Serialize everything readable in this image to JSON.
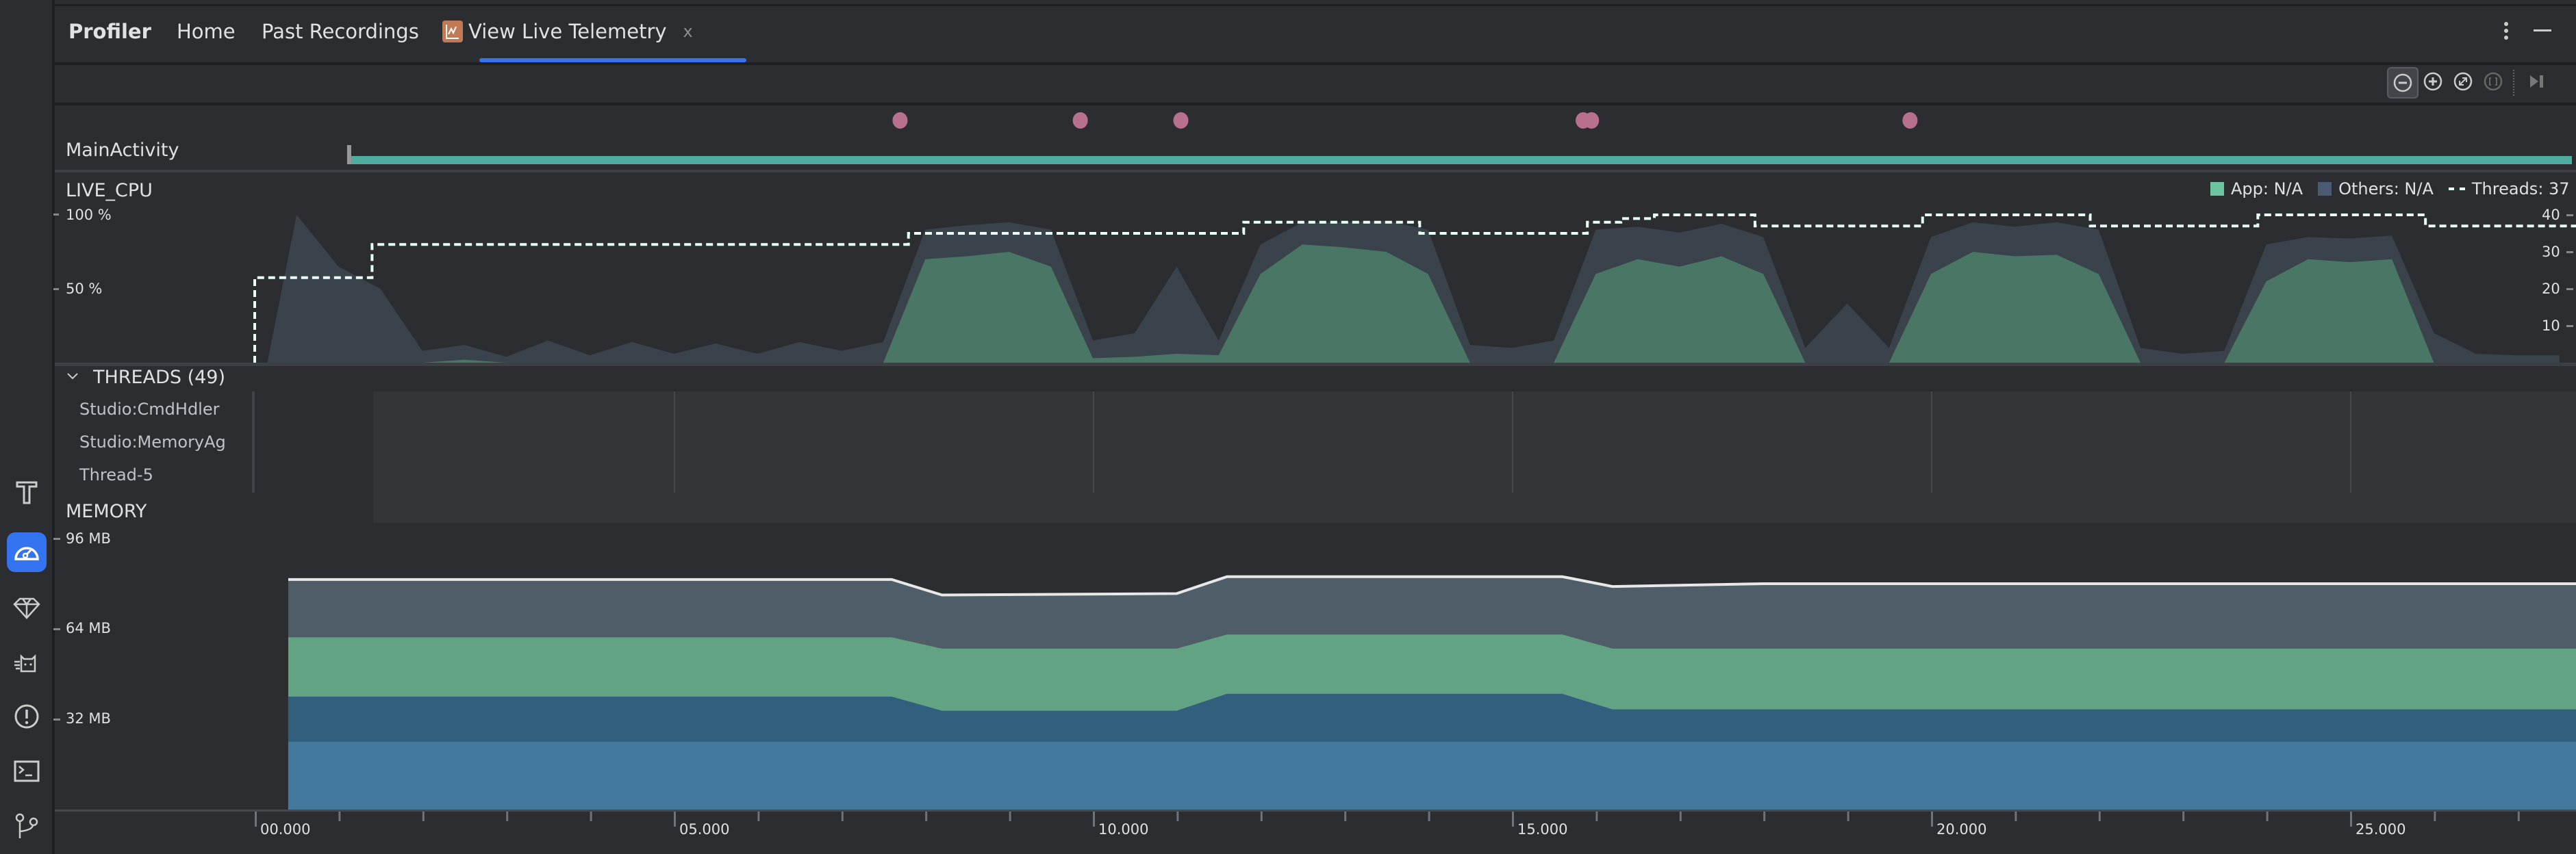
{
  "tabs": {
    "title": "Profiler",
    "items": [
      {
        "label": "Home"
      },
      {
        "label": "Past Recordings"
      },
      {
        "label": "View Live Telemetry",
        "active": true,
        "icon": "chart-icon",
        "closable": true
      }
    ],
    "close_glyph": "x",
    "accent": "#3574f0"
  },
  "window_controls": {
    "more": "more-vertical-icon",
    "minimize": "minimize-icon"
  },
  "toolbar": {
    "buttons": [
      "zoom-out-icon",
      "zoom-in-icon",
      "reset-zoom-icon",
      "zoom-to-selection-icon",
      "go-live-icon"
    ]
  },
  "left_toolbar": [
    "build-icon",
    "profiler-icon",
    "gem-icon",
    "cat-icon",
    "problems-icon",
    "terminal-icon",
    "git-icon"
  ],
  "events": {
    "activity_label": "MainActivity",
    "activity_start": 1.2,
    "activity_color": "#4fada0",
    "interaction_times": [
      7.7,
      9.85,
      11.05,
      15.85,
      15.95,
      19.75
    ],
    "dot_color": "#b87090"
  },
  "cpu": {
    "title": "LIVE_CPU",
    "legend": {
      "app": "App: N/A",
      "others": "Others: N/A",
      "threads": "Threads: 37"
    },
    "y_ticks_left": [
      "100 %",
      "50 %"
    ],
    "y_ticks_right": [
      "40",
      "30",
      "20",
      "10"
    ]
  },
  "threads": {
    "title": "THREADS (49)",
    "rows": [
      "Studio:CmdHdler",
      "Studio:MemoryAg",
      "Thread-5"
    ]
  },
  "memory": {
    "title": "MEMORY",
    "y_ticks": [
      "96 MB",
      "64 MB",
      "32 MB"
    ]
  },
  "time_axis": {
    "labels": [
      "00.000",
      "05.000",
      "10.000",
      "15.000",
      "20.000",
      "25.000"
    ]
  },
  "chart_data": [
    {
      "type": "area",
      "name": "LIVE_CPU",
      "x_unit": "seconds",
      "xlim": [
        0,
        27.7
      ],
      "ylim": [
        0,
        100
      ],
      "y2lim": [
        0,
        40
      ],
      "x": [
        0,
        0.5,
        1,
        1.5,
        2,
        2.5,
        3,
        3.5,
        4,
        4.5,
        5,
        5.5,
        6,
        6.5,
        7,
        7.5,
        8,
        8.5,
        9,
        9.5,
        10,
        10.5,
        11,
        11.5,
        12,
        12.5,
        13,
        13.5,
        14,
        14.5,
        15,
        15.5,
        16,
        16.5,
        17,
        17.5,
        18,
        18.5,
        19,
        19.5,
        20,
        20.5,
        21,
        21.5,
        22,
        22.5,
        23,
        23.5,
        24,
        24.5,
        25,
        25.5,
        26,
        26.5,
        27,
        27.5
      ],
      "series": [
        {
          "name": "App",
          "color": "#4a7665",
          "values": [
            0,
            0,
            0,
            0,
            0,
            2,
            0,
            0,
            0,
            0,
            0,
            0,
            0,
            0,
            0,
            0,
            70,
            72,
            75,
            65,
            3,
            4,
            6,
            5,
            60,
            80,
            78,
            75,
            60,
            0,
            0,
            0,
            60,
            70,
            65,
            72,
            60,
            0,
            0,
            0,
            60,
            75,
            72,
            73,
            60,
            0,
            0,
            0,
            55,
            70,
            68,
            70,
            0,
            0,
            0,
            0
          ]
        },
        {
          "name": "Others",
          "color": "#3a424b",
          "values": [
            0,
            100,
            65,
            50,
            8,
            12,
            4,
            15,
            5,
            14,
            6,
            13,
            6,
            14,
            8,
            14,
            90,
            93,
            95,
            90,
            15,
            20,
            65,
            15,
            80,
            95,
            95,
            96,
            90,
            12,
            10,
            15,
            90,
            92,
            88,
            94,
            85,
            10,
            40,
            10,
            85,
            95,
            92,
            95,
            90,
            10,
            6,
            8,
            80,
            85,
            84,
            86,
            20,
            6,
            5,
            5
          ]
        }
      ],
      "threads_steps": [
        [
          0,
          23
        ],
        [
          1.4,
          32
        ],
        [
          7.8,
          35
        ],
        [
          11.8,
          38
        ],
        [
          13.9,
          35
        ],
        [
          15.9,
          38
        ],
        [
          16.3,
          39
        ],
        [
          16.7,
          40
        ],
        [
          17.9,
          37
        ],
        [
          19.9,
          40
        ],
        [
          21.9,
          37
        ],
        [
          23.9,
          40
        ],
        [
          25.9,
          37
        ]
      ]
    },
    {
      "type": "area",
      "name": "MEMORY",
      "x_unit": "seconds",
      "y_unit": "MB",
      "ylim": [
        0,
        96
      ],
      "x": [
        0.4,
        7.6,
        8.2,
        11.0,
        11.6,
        15.6,
        16.2,
        18.0,
        27.7
      ],
      "stacked_tops": [
        {
          "color": "#43799c",
          "values": [
            24,
            24,
            24,
            24,
            24,
            24,
            24,
            24,
            24
          ]
        },
        {
          "color": "#325f7e",
          "values": [
            40,
            40,
            35,
            35,
            41,
            41,
            35.5,
            35.5,
            35.5
          ]
        },
        {
          "color": "#62a384",
          "values": [
            61,
            61,
            57,
            57,
            62,
            62,
            57,
            57,
            57
          ]
        },
        {
          "color": "#4f5d68",
          "values": [
            81.5,
            81.5,
            76,
            76.5,
            82.5,
            82.5,
            79,
            80,
            80
          ]
        }
      ]
    }
  ]
}
